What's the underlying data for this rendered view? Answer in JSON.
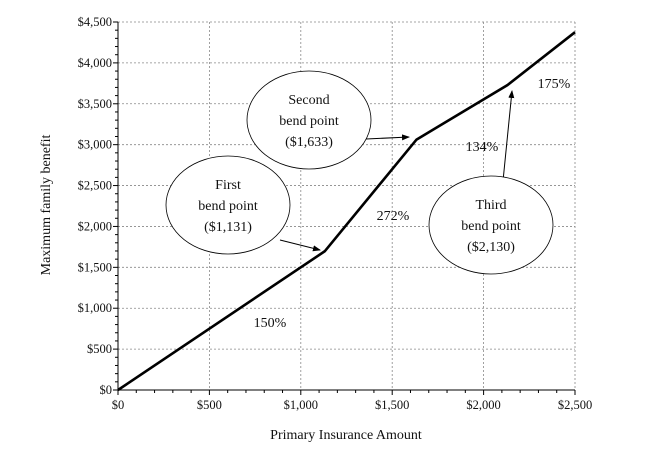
{
  "chart_data": {
    "type": "line",
    "title": "",
    "xlabel": "Primary Insurance Amount",
    "ylabel": "Maximum family benefit",
    "xlim": [
      0,
      2500
    ],
    "ylim": [
      0,
      4500
    ],
    "grid": true,
    "x_ticks": [
      "$0",
      "$500",
      "$1,000",
      "$1,500",
      "$2,000",
      "$2,500"
    ],
    "y_ticks": [
      "$0",
      "$500",
      "$1,000",
      "$1,500",
      "$2,000",
      "$2,500",
      "$3,000",
      "$3,500",
      "$4,000",
      "$4,500"
    ],
    "series": [
      {
        "x": [
          0,
          1131,
          1633,
          2130,
          2500
        ],
        "y": [
          0,
          1696.5,
          3062,
          3728,
          4375.5
        ],
        "color": "#000000"
      }
    ],
    "segment_labels": [
      "150%",
      "272%",
      "134%",
      "175%"
    ],
    "callouts": [
      {
        "lines": [
          "First",
          "bend point",
          "($1,131)"
        ]
      },
      {
        "lines": [
          "Second",
          "bend point",
          "($1,633)"
        ]
      },
      {
        "lines": [
          "Third",
          "bend point",
          "($2,130)"
        ]
      }
    ]
  }
}
